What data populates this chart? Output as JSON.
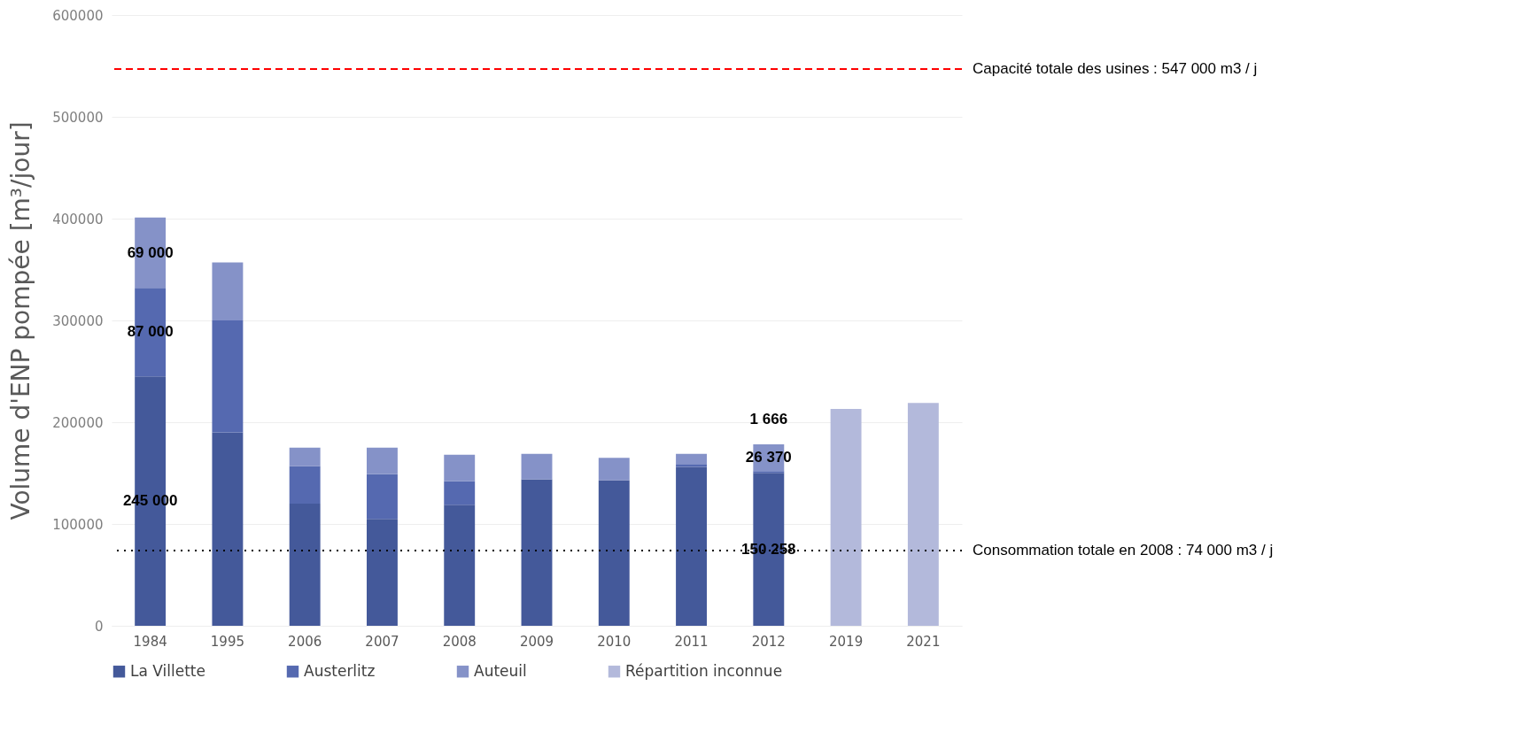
{
  "chart_data": {
    "type": "bar",
    "stacked": true,
    "ylabel": "Volume d'ENP pompée [m³/jour]",
    "categories": [
      "1984",
      "1995",
      "2006",
      "2007",
      "2008",
      "2009",
      "2010",
      "2011",
      "2012",
      "2019",
      "2021"
    ],
    "series": [
      {
        "name": "La Villette",
        "color": "#44599a",
        "values": [
          245000,
          190000,
          120000,
          105000,
          119000,
          144000,
          143000,
          156000,
          150258,
          null,
          null
        ],
        "value_labels": [
          "245 000",
          null,
          null,
          null,
          null,
          null,
          null,
          null,
          "150 258",
          null,
          null
        ]
      },
      {
        "name": "Austerlitz",
        "color": "#5569b0",
        "values": [
          87000,
          110000,
          37000,
          44000,
          23000,
          null,
          null,
          3000,
          1666,
          null,
          null
        ],
        "value_labels": [
          "87 000",
          null,
          null,
          null,
          null,
          null,
          null,
          null,
          "1 666",
          null,
          null
        ]
      },
      {
        "name": "Auteuil",
        "color": "#8592c8",
        "values": [
          69000,
          57000,
          18000,
          26000,
          26000,
          25000,
          22000,
          10000,
          26370,
          null,
          null
        ],
        "value_labels": [
          "69 000",
          null,
          null,
          null,
          null,
          null,
          null,
          null,
          "26 370",
          null,
          null
        ]
      },
      {
        "name": "Répartition inconnue",
        "color": "#b3b9db",
        "values": [
          null,
          null,
          null,
          null,
          null,
          null,
          null,
          null,
          null,
          213000,
          219000
        ]
      }
    ],
    "ylim": [
      0,
      600000
    ],
    "yticks": [
      0,
      100000,
      200000,
      300000,
      400000,
      500000,
      600000
    ],
    "grid": "y",
    "legend": "bottom",
    "ref_lines": [
      {
        "axis": "y",
        "value": 547000,
        "label": "Capacité totale des usines : 547 000 m3 / j",
        "color": "#ff0000",
        "line_style": "dashed"
      },
      {
        "axis": "y",
        "value": 74000,
        "label": "Consommation totale en 2008 : 74 000 m3 / j",
        "color": "#000000",
        "line_style": "dotted"
      }
    ]
  }
}
